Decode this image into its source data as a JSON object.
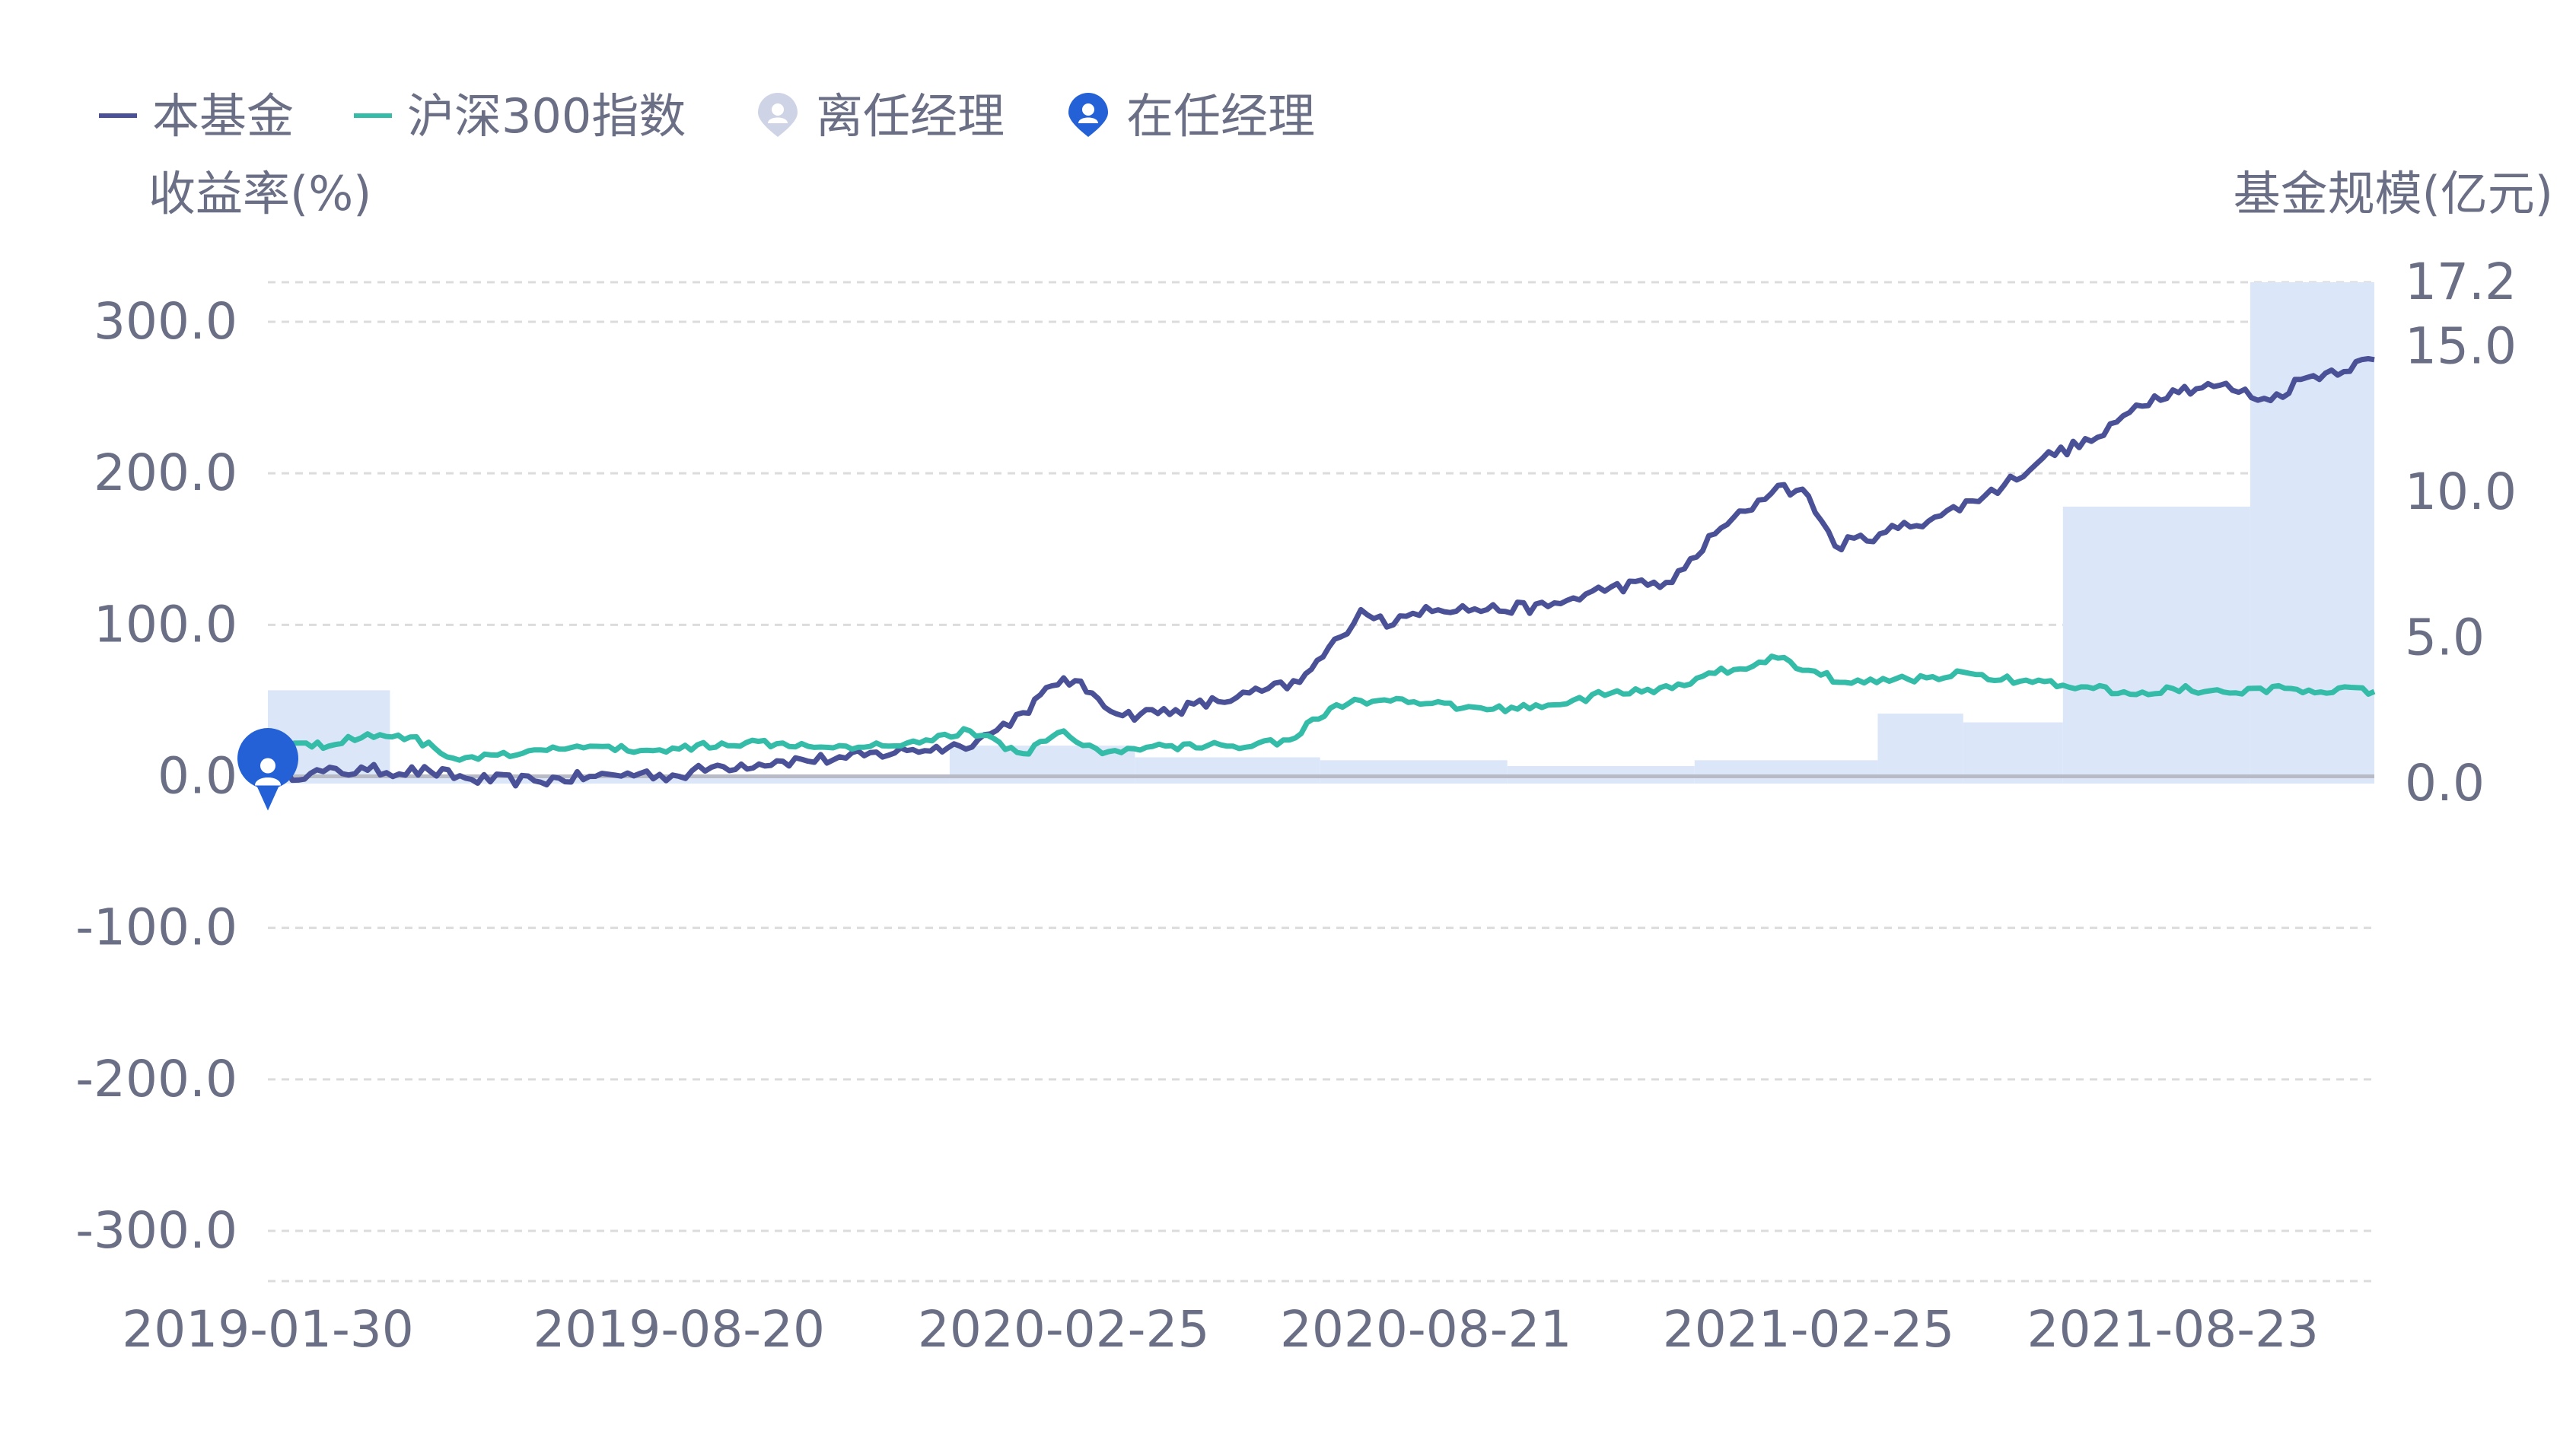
{
  "legend": {
    "fund": "本基金",
    "index": "沪深300指数",
    "former_manager": "离任经理",
    "current_manager": "在任经理"
  },
  "colors": {
    "fund": "#4a5196",
    "index": "#35bca9",
    "bars": "#dbe6f8",
    "former_manager": "#cfd3e6",
    "current_manager": "#2461d6",
    "grid": "#dcdcdc",
    "axis": "#b8bac6",
    "text": "#6b6f86"
  },
  "chart_data": {
    "type": "line",
    "left_axis_title": "收益率(%)",
    "right_axis_title": "基金规模(亿元)",
    "ylim_left": [
      -300,
      300
    ],
    "left_ticks": [
      "300.0",
      "200.0",
      "100.0",
      "0.0",
      "-100.0",
      "-200.0",
      "-300.0"
    ],
    "ylim_right": [
      0,
      17.2
    ],
    "right_ticks": [
      "17.2",
      "15.0",
      "10.0",
      "5.0",
      "0.0"
    ],
    "x_ticks": [
      "2019-01-30",
      "2019-08-20",
      "2020-02-25",
      "2020-08-21",
      "2021-02-25",
      "2021-08-23"
    ],
    "x_range": [
      "2019-01-30",
      "2021-11-30"
    ],
    "grid": true,
    "legend_position": "top-left",
    "bars": {
      "name": "基金规模",
      "axis": "right",
      "segments": [
        {
          "start": "2019-01-30",
          "end": "2019-03-31",
          "value": 3.2
        },
        {
          "start": "2019-03-31",
          "end": "2019-12-31",
          "value": 0.3
        },
        {
          "start": "2019-12-31",
          "end": "2020-03-31",
          "value": 1.3
        },
        {
          "start": "2020-03-31",
          "end": "2020-06-30",
          "value": 0.9
        },
        {
          "start": "2020-06-30",
          "end": "2020-09-30",
          "value": 0.8
        },
        {
          "start": "2020-09-30",
          "end": "2020-12-31",
          "value": 0.6
        },
        {
          "start": "2020-12-31",
          "end": "2021-03-31",
          "value": 0.8
        },
        {
          "start": "2021-03-31",
          "end": "2021-05-12",
          "value": 2.4
        },
        {
          "start": "2021-05-12",
          "end": "2021-06-30",
          "value": 2.1
        },
        {
          "start": "2021-06-30",
          "end": "2021-09-30",
          "value": 9.5
        },
        {
          "start": "2021-09-30",
          "end": "2021-11-30",
          "value": 17.2
        }
      ]
    },
    "series": [
      {
        "name": "本基金",
        "axis": "left",
        "points": [
          [
            "2019-01-30",
            0
          ],
          [
            "2019-02-20",
            2
          ],
          [
            "2019-03-20",
            4
          ],
          [
            "2019-04-20",
            3
          ],
          [
            "2019-05-10",
            -2
          ],
          [
            "2019-06-10",
            -3
          ],
          [
            "2019-07-10",
            0
          ],
          [
            "2019-08-01",
            2
          ],
          [
            "2019-08-20",
            0
          ],
          [
            "2019-09-05",
            6
          ],
          [
            "2019-10-10",
            10
          ],
          [
            "2019-11-10",
            12
          ],
          [
            "2019-12-10",
            17
          ],
          [
            "2020-01-05",
            20
          ],
          [
            "2020-01-20",
            28
          ],
          [
            "2020-02-05",
            42
          ],
          [
            "2020-02-25",
            65
          ],
          [
            "2020-03-10",
            55
          ],
          [
            "2020-03-25",
            40
          ],
          [
            "2020-04-20",
            44
          ],
          [
            "2020-05-20",
            52
          ],
          [
            "2020-06-20",
            62
          ],
          [
            "2020-07-10",
            92
          ],
          [
            "2020-07-20",
            110
          ],
          [
            "2020-08-05",
            100
          ],
          [
            "2020-08-21",
            112
          ],
          [
            "2020-09-20",
            110
          ],
          [
            "2020-10-20",
            112
          ],
          [
            "2020-11-20",
            125
          ],
          [
            "2020-12-20",
            128
          ],
          [
            "2021-01-10",
            160
          ],
          [
            "2021-01-25",
            175
          ],
          [
            "2021-02-10",
            192
          ],
          [
            "2021-02-25",
            185
          ],
          [
            "2021-03-10",
            152
          ],
          [
            "2021-04-01",
            160
          ],
          [
            "2021-05-01",
            172
          ],
          [
            "2021-06-01",
            192
          ],
          [
            "2021-06-20",
            210
          ],
          [
            "2021-07-20",
            225
          ],
          [
            "2021-08-05",
            245
          ],
          [
            "2021-08-23",
            255
          ],
          [
            "2021-09-15",
            258
          ],
          [
            "2021-10-10",
            248
          ],
          [
            "2021-10-25",
            262
          ],
          [
            "2021-11-30",
            275
          ]
        ]
      },
      {
        "name": "沪深300指数",
        "axis": "left",
        "points": [
          [
            "2019-01-30",
            15
          ],
          [
            "2019-02-15",
            22
          ],
          [
            "2019-03-01",
            20
          ],
          [
            "2019-03-20",
            28
          ],
          [
            "2019-04-10",
            26
          ],
          [
            "2019-05-01",
            12
          ],
          [
            "2019-06-01",
            14
          ],
          [
            "2019-07-01",
            20
          ],
          [
            "2019-08-01",
            17
          ],
          [
            "2019-08-20",
            18
          ],
          [
            "2019-09-10",
            22
          ],
          [
            "2019-10-10",
            22
          ],
          [
            "2019-11-10",
            20
          ],
          [
            "2019-12-10",
            22
          ],
          [
            "2020-01-10",
            30
          ],
          [
            "2020-02-05",
            15
          ],
          [
            "2020-02-25",
            30
          ],
          [
            "2020-03-15",
            15
          ],
          [
            "2020-04-15",
            20
          ],
          [
            "2020-05-15",
            20
          ],
          [
            "2020-06-15",
            24
          ],
          [
            "2020-07-05",
            45
          ],
          [
            "2020-07-20",
            50
          ],
          [
            "2020-08-21",
            48
          ],
          [
            "2020-09-20",
            44
          ],
          [
            "2020-10-20",
            47
          ],
          [
            "2020-11-20",
            55
          ],
          [
            "2020-12-20",
            58
          ],
          [
            "2021-01-10",
            68
          ],
          [
            "2021-02-10",
            78
          ],
          [
            "2021-02-25",
            70
          ],
          [
            "2021-03-15",
            62
          ],
          [
            "2021-04-15",
            64
          ],
          [
            "2021-05-15",
            68
          ],
          [
            "2021-06-15",
            62
          ],
          [
            "2021-07-15",
            58
          ],
          [
            "2021-08-05",
            54
          ],
          [
            "2021-08-23",
            58
          ],
          [
            "2021-09-20",
            55
          ],
          [
            "2021-10-20",
            58
          ],
          [
            "2021-11-30",
            56
          ]
        ]
      }
    ],
    "manager_markers": [
      {
        "type": "current",
        "date": "2019-01-30"
      }
    ]
  }
}
